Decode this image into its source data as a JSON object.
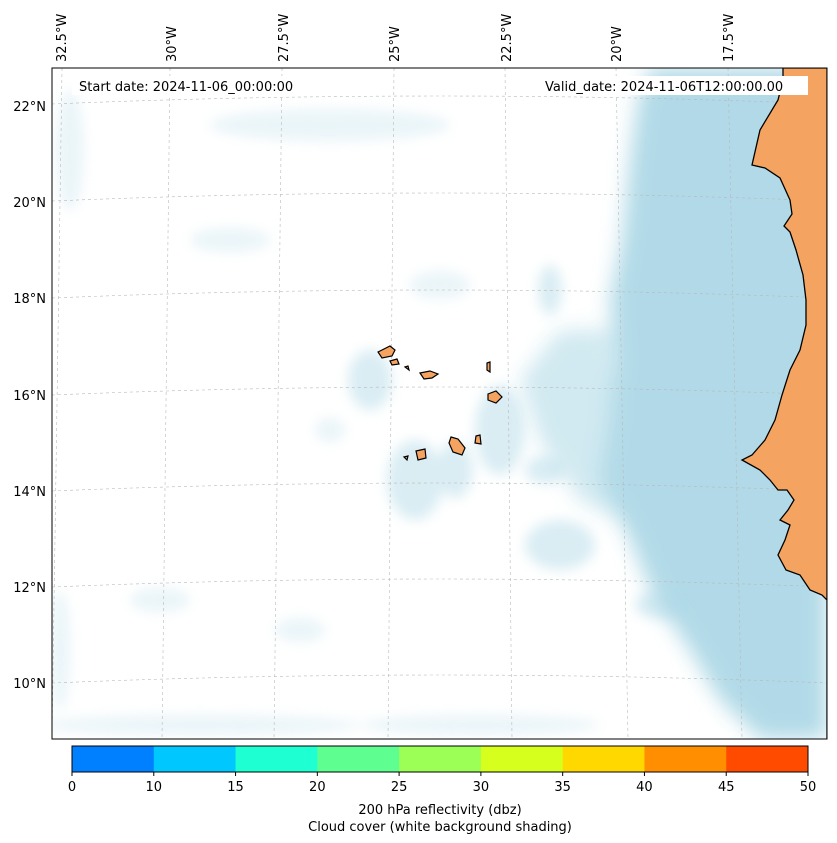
{
  "header": {
    "start_date": "Start date: 2024-11-06_00:00:00",
    "valid_date": "Valid_date: 2024-11-06T12:00:00.00"
  },
  "map": {
    "longitude_labels": [
      "32.5°W",
      "30°W",
      "27.5°W",
      "25°W",
      "22.5°W",
      "20°W",
      "17.5°W"
    ],
    "latitude_labels": [
      "22°N",
      "20°N",
      "18°N",
      "16°N",
      "14°N",
      "12°N",
      "10°N"
    ],
    "land_color": "#f4a460",
    "cloud_color": "#add8e6",
    "coastline_color": "#000000"
  },
  "colorbar": {
    "ticks": [
      "0",
      "10",
      "15",
      "20",
      "25",
      "30",
      "35",
      "40",
      "45",
      "50"
    ],
    "colors": [
      "#007fff",
      "#00c8ff",
      "#1effd2",
      "#5eff90",
      "#9bff55",
      "#d7ff1e",
      "#ffd800",
      "#ff8e00",
      "#ff4b00"
    ],
    "label_line1": "200 hPa reflectivity (dbz)",
    "label_line2": "Cloud cover (white background shading)"
  }
}
